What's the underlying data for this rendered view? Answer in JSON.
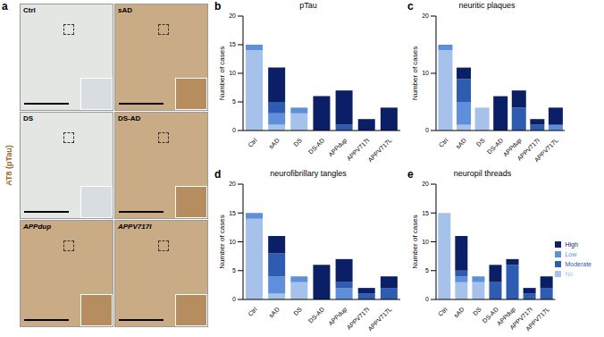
{
  "panel_a": {
    "panel": "a",
    "stain_label": "AT8 (pTau)",
    "images": [
      "Ctrl",
      "sAD",
      "DS",
      "DS-AD",
      "APPdup",
      "APPV717I"
    ]
  },
  "chart_data": [
    {
      "panel": "b",
      "type": "bar",
      "stacked": true,
      "title": "pTau",
      "y_label": "Number of cases",
      "categories": [
        "Ctrl",
        "sAD",
        "DS",
        "DS-AD",
        "APPdup",
        "APPV717I",
        "APPV717L"
      ],
      "ylim": [
        0,
        20
      ],
      "yticks": [
        0,
        5,
        10,
        15,
        20
      ],
      "series": [
        {
          "name": "No",
          "color": "#a6c1ea",
          "values": [
            14,
            1,
            3,
            0,
            0,
            0,
            0
          ]
        },
        {
          "name": "Low",
          "color": "#5d8fdb",
          "values": [
            1,
            2,
            1,
            0,
            0,
            0,
            0
          ]
        },
        {
          "name": "Moderate",
          "color": "#2d5cb0",
          "values": [
            0,
            2,
            0,
            0,
            1,
            0,
            0
          ]
        },
        {
          "name": "High",
          "color": "#0b1f66",
          "values": [
            0,
            6,
            0,
            6,
            6,
            2,
            4
          ]
        }
      ]
    },
    {
      "panel": "c",
      "type": "bar",
      "stacked": true,
      "title": "neuritic plaques",
      "y_label": "Number of cases",
      "categories": [
        "Ctrl",
        "sAD",
        "DS",
        "DS-AD",
        "APPdup",
        "APPV717I",
        "APPV717L"
      ],
      "ylim": [
        0,
        20
      ],
      "yticks": [
        0,
        10,
        20
      ],
      "series": [
        {
          "name": "No",
          "color": "#a6c1ea",
          "values": [
            14,
            1,
            4,
            0,
            0,
            0,
            0
          ]
        },
        {
          "name": "Low",
          "color": "#5d8fdb",
          "values": [
            1,
            4,
            0,
            0,
            0,
            0,
            1
          ]
        },
        {
          "name": "Moderate",
          "color": "#2d5cb0",
          "values": [
            0,
            4,
            0,
            0,
            4,
            1,
            0
          ]
        },
        {
          "name": "High",
          "color": "#0b1f66",
          "values": [
            0,
            2,
            0,
            6,
            3,
            1,
            3
          ]
        }
      ]
    },
    {
      "panel": "d",
      "type": "bar",
      "stacked": true,
      "title": "neurofibrillary tangles",
      "y_label": "Number of cases",
      "categories": [
        "Ctrl",
        "sAD",
        "DS",
        "DS-AD",
        "APPdup",
        "APPV717I",
        "APPV717L"
      ],
      "ylim": [
        0,
        20
      ],
      "yticks": [
        0,
        5,
        10,
        15,
        20
      ],
      "series": [
        {
          "name": "No",
          "color": "#a6c1ea",
          "values": [
            14,
            1,
            3,
            0,
            0,
            0,
            0
          ]
        },
        {
          "name": "Low",
          "color": "#5d8fdb",
          "values": [
            1,
            3,
            1,
            0,
            2,
            0,
            0
          ]
        },
        {
          "name": "Moderate",
          "color": "#2d5cb0",
          "values": [
            0,
            4,
            0,
            0,
            1,
            1,
            2
          ]
        },
        {
          "name": "High",
          "color": "#0b1f66",
          "values": [
            0,
            3,
            0,
            6,
            4,
            1,
            2
          ]
        }
      ]
    },
    {
      "panel": "e",
      "type": "bar",
      "stacked": true,
      "title": "neuropil threads",
      "y_label": "Number of cases",
      "legend": "right",
      "categories": [
        "Ctrl",
        "sAD",
        "DS",
        "DS-AD",
        "APPdup",
        "APPV717I",
        "APPV717L"
      ],
      "ylim": [
        0,
        20
      ],
      "yticks": [
        0,
        5,
        10,
        15,
        20
      ],
      "series": [
        {
          "name": "No",
          "color": "#a6c1ea",
          "values": [
            15,
            3,
            3,
            0,
            0,
            0,
            0
          ]
        },
        {
          "name": "Low",
          "color": "#5d8fdb",
          "values": [
            0,
            1,
            1,
            0,
            0,
            0,
            0
          ]
        },
        {
          "name": "Moderate",
          "color": "#2d5cb0",
          "values": [
            0,
            1,
            0,
            3,
            6,
            1,
            2
          ]
        },
        {
          "name": "High",
          "color": "#0b1f66",
          "values": [
            0,
            6,
            0,
            3,
            1,
            1,
            2
          ]
        }
      ]
    }
  ]
}
